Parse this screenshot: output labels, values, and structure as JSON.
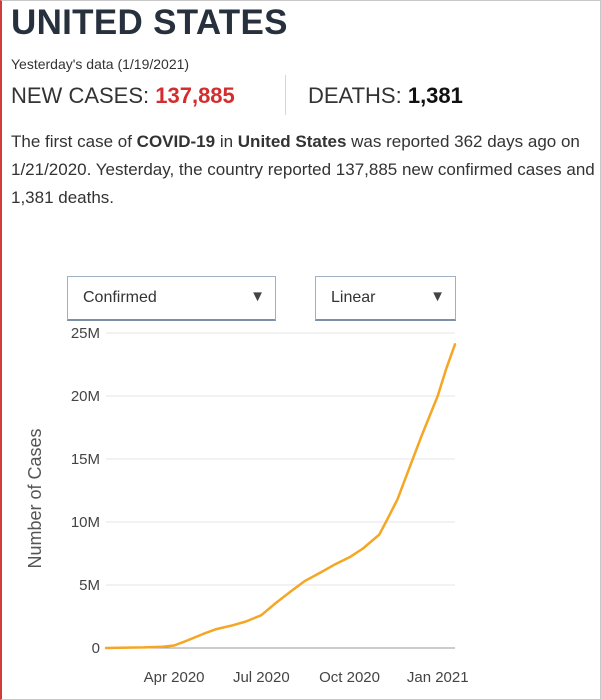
{
  "header": {
    "title": "UNITED STATES",
    "subtitle": "Yesterday's data (1/19/2021)"
  },
  "stats": {
    "cases_label": "NEW CASES: ",
    "cases_value": "137,885",
    "deaths_label": "DEATHS: ",
    "deaths_value": "1,381"
  },
  "description": {
    "p1": "The first case of ",
    "disease": "COVID-19",
    "p2": " in ",
    "country": "United States",
    "p3": " was reported 362 days ago on 1/21/2020. Yesterday, the country reported 137,885 new confirmed cases and 1,381 deaths."
  },
  "controls": {
    "metric_select": "Confirmed",
    "scale_select": "Linear",
    "arrow_glyph": "▼"
  },
  "colors": {
    "line": "#f5a623",
    "grid": "#e6e6e6",
    "axis": "#9a9a9a",
    "cases_value": "#d42d2d"
  },
  "chart_data": {
    "type": "line",
    "title": "",
    "xlabel": "",
    "ylabel": "Number of Cases",
    "ylim": [
      0,
      25000000
    ],
    "yticks": [
      0,
      5000000,
      10000000,
      15000000,
      20000000,
      25000000
    ],
    "ytick_labels": [
      "0",
      "5M",
      "10M",
      "15M",
      "20M",
      "25M"
    ],
    "xlim": [
      "2020-01-21",
      "2021-01-19"
    ],
    "xticks": [
      "2020-04-01",
      "2020-07-01",
      "2020-10-01",
      "2021-01-01"
    ],
    "xtick_labels": [
      "Apr 2020",
      "Jul 2020",
      "Oct 2020",
      "Jan 2021"
    ],
    "grid": true,
    "series": [
      {
        "name": "",
        "x": [
          "2020-01-21",
          "2020-03-01",
          "2020-03-20",
          "2020-04-01",
          "2020-04-15",
          "2020-05-01",
          "2020-05-15",
          "2020-06-01",
          "2020-06-15",
          "2020-07-01",
          "2020-07-15",
          "2020-08-01",
          "2020-08-15",
          "2020-09-01",
          "2020-09-15",
          "2020-10-01",
          "2020-10-15",
          "2020-11-01",
          "2020-11-10",
          "2020-11-20",
          "2020-12-01",
          "2020-12-15",
          "2021-01-01",
          "2021-01-10",
          "2021-01-19"
        ],
        "values": [
          0,
          50000,
          100000,
          200000,
          600000,
          1100000,
          1500000,
          1800000,
          2100000,
          2600000,
          3500000,
          4500000,
          5300000,
          6000000,
          6600000,
          7200000,
          7900000,
          9000000,
          10300000,
          11800000,
          14000000,
          16800000,
          20000000,
          22200000,
          24100000
        ]
      }
    ]
  }
}
